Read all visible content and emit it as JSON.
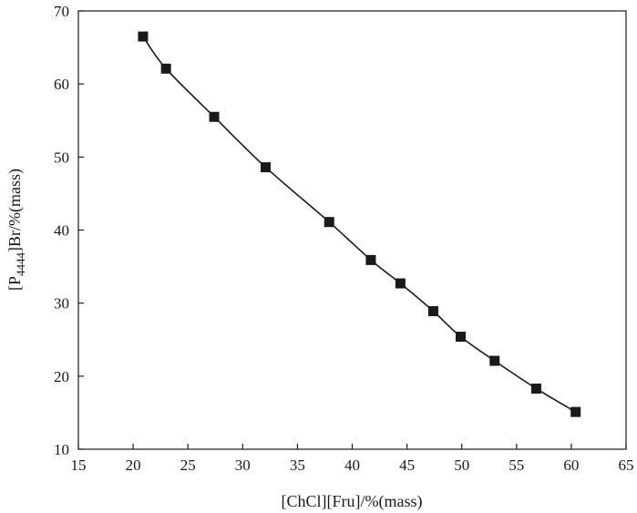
{
  "chart_data": {
    "type": "scatter",
    "title": "",
    "xlabel": "[ChCl][Fru]/%(mass)",
    "ylabel": {
      "prefix": "[P",
      "subscript": "4444",
      "suffix": "]Br/%(mass)"
    },
    "xlim": [
      15,
      65
    ],
    "ylim": [
      10,
      70
    ],
    "xticks": [
      "15",
      "20",
      "25",
      "30",
      "35",
      "40",
      "45",
      "50",
      "55",
      "60",
      "65"
    ],
    "yticks": [
      "10",
      "20",
      "30",
      "40",
      "50",
      "60",
      "70"
    ],
    "grid": false,
    "legend": "none",
    "marker": "square",
    "marker_color": "#1a1a1a",
    "line_color": "#1a1a1a",
    "series": [
      {
        "x": [
          20.9,
          23.0,
          27.4,
          32.1,
          37.9,
          41.7,
          44.4,
          47.4,
          49.9,
          53.0,
          56.8,
          60.4
        ],
        "y": [
          66.5,
          62.1,
          55.5,
          48.6,
          41.1,
          35.9,
          32.7,
          28.9,
          25.4,
          22.1,
          18.3,
          15.1
        ]
      }
    ],
    "fit_line": {
      "x": [
        20.9,
        23.0,
        27.4,
        32.1,
        37.9,
        41.7,
        44.4,
        47.4,
        49.9,
        53.0,
        56.8,
        60.4
      ],
      "y": [
        66.5,
        62.1,
        55.5,
        48.6,
        41.1,
        35.9,
        32.7,
        28.9,
        25.4,
        22.1,
        18.3,
        15.1
      ]
    }
  }
}
